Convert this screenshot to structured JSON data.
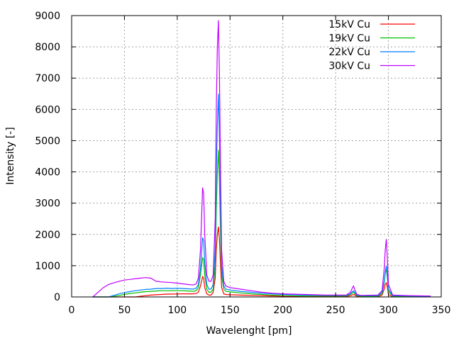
{
  "chart_data": {
    "type": "line",
    "title": "",
    "xlabel": "Wavelenght [pm]",
    "ylabel": "Intensity [-]",
    "xlim": [
      0,
      350
    ],
    "ylim": [
      0,
      9000
    ],
    "xticks": [
      0,
      50,
      100,
      150,
      200,
      250,
      300,
      350
    ],
    "yticks": [
      0,
      1000,
      2000,
      3000,
      4000,
      5000,
      6000,
      7000,
      8000,
      9000
    ],
    "grid": true,
    "legend_position": "top-right",
    "x": [
      20,
      25,
      30,
      35,
      40,
      45,
      50,
      55,
      60,
      65,
      70,
      75,
      80,
      85,
      90,
      95,
      100,
      105,
      110,
      115,
      118,
      120,
      122,
      124,
      125,
      126,
      128,
      130,
      132,
      134,
      136,
      137,
      138,
      139,
      140,
      141,
      142,
      144,
      146,
      150,
      160,
      170,
      180,
      190,
      200,
      220,
      240,
      260,
      264,
      266,
      267,
      268,
      270,
      274,
      290,
      294,
      296,
      297,
      298,
      299,
      300,
      304,
      320,
      340
    ],
    "series": [
      {
        "name": "15kV Cu",
        "color": "#ff0000",
        "values": [
          0,
          0,
          0,
          0,
          0,
          0,
          0,
          0,
          0,
          20,
          40,
          60,
          70,
          80,
          90,
          90,
          95,
          100,
          100,
          100,
          110,
          150,
          350,
          650,
          600,
          300,
          100,
          60,
          60,
          150,
          600,
          1500,
          2000,
          2250,
          1800,
          1000,
          300,
          100,
          80,
          70,
          60,
          50,
          40,
          30,
          25,
          20,
          15,
          15,
          40,
          70,
          80,
          60,
          20,
          10,
          10,
          60,
          250,
          400,
          450,
          300,
          80,
          10,
          5,
          5
        ]
      },
      {
        "name": "19kV Cu",
        "color": "#00c000",
        "values": [
          0,
          0,
          0,
          0,
          20,
          50,
          80,
          110,
          130,
          150,
          170,
          180,
          190,
          200,
          200,
          200,
          200,
          200,
          190,
          180,
          200,
          300,
          700,
          1250,
          1200,
          700,
          250,
          150,
          150,
          250,
          1000,
          2800,
          4000,
          4700,
          3600,
          2000,
          700,
          250,
          180,
          160,
          130,
          100,
          80,
          60,
          40,
          30,
          30,
          30,
          80,
          130,
          150,
          110,
          40,
          25,
          25,
          100,
          450,
          750,
          900,
          600,
          180,
          25,
          15,
          10
        ]
      },
      {
        "name": "22kV Cu",
        "color": "#0080ff",
        "values": [
          0,
          0,
          0,
          0,
          50,
          100,
          140,
          170,
          200,
          220,
          240,
          250,
          270,
          270,
          280,
          270,
          280,
          270,
          260,
          250,
          280,
          400,
          900,
          1900,
          1800,
          1100,
          400,
          250,
          250,
          400,
          1500,
          4000,
          5500,
          6500,
          5000,
          2800,
          1000,
          350,
          250,
          220,
          180,
          150,
          120,
          100,
          80,
          60,
          50,
          50,
          100,
          180,
          200,
          150,
          60,
          40,
          40,
          150,
          500,
          800,
          1000,
          700,
          250,
          40,
          30,
          20
        ]
      },
      {
        "name": "30kV Cu",
        "color": "#c000ff",
        "values": [
          0,
          150,
          300,
          400,
          450,
          500,
          540,
          560,
          580,
          600,
          620,
          600,
          500,
          480,
          470,
          460,
          440,
          420,
          400,
          380,
          420,
          600,
          1500,
          3500,
          3300,
          2000,
          700,
          500,
          500,
          700,
          2500,
          6000,
          8000,
          8850,
          7000,
          4000,
          1500,
          500,
          350,
          300,
          250,
          200,
          150,
          120,
          100,
          80,
          60,
          60,
          150,
          300,
          350,
          250,
          80,
          50,
          60,
          200,
          900,
          1500,
          1850,
          1200,
          400,
          60,
          40,
          30
        ]
      }
    ]
  }
}
